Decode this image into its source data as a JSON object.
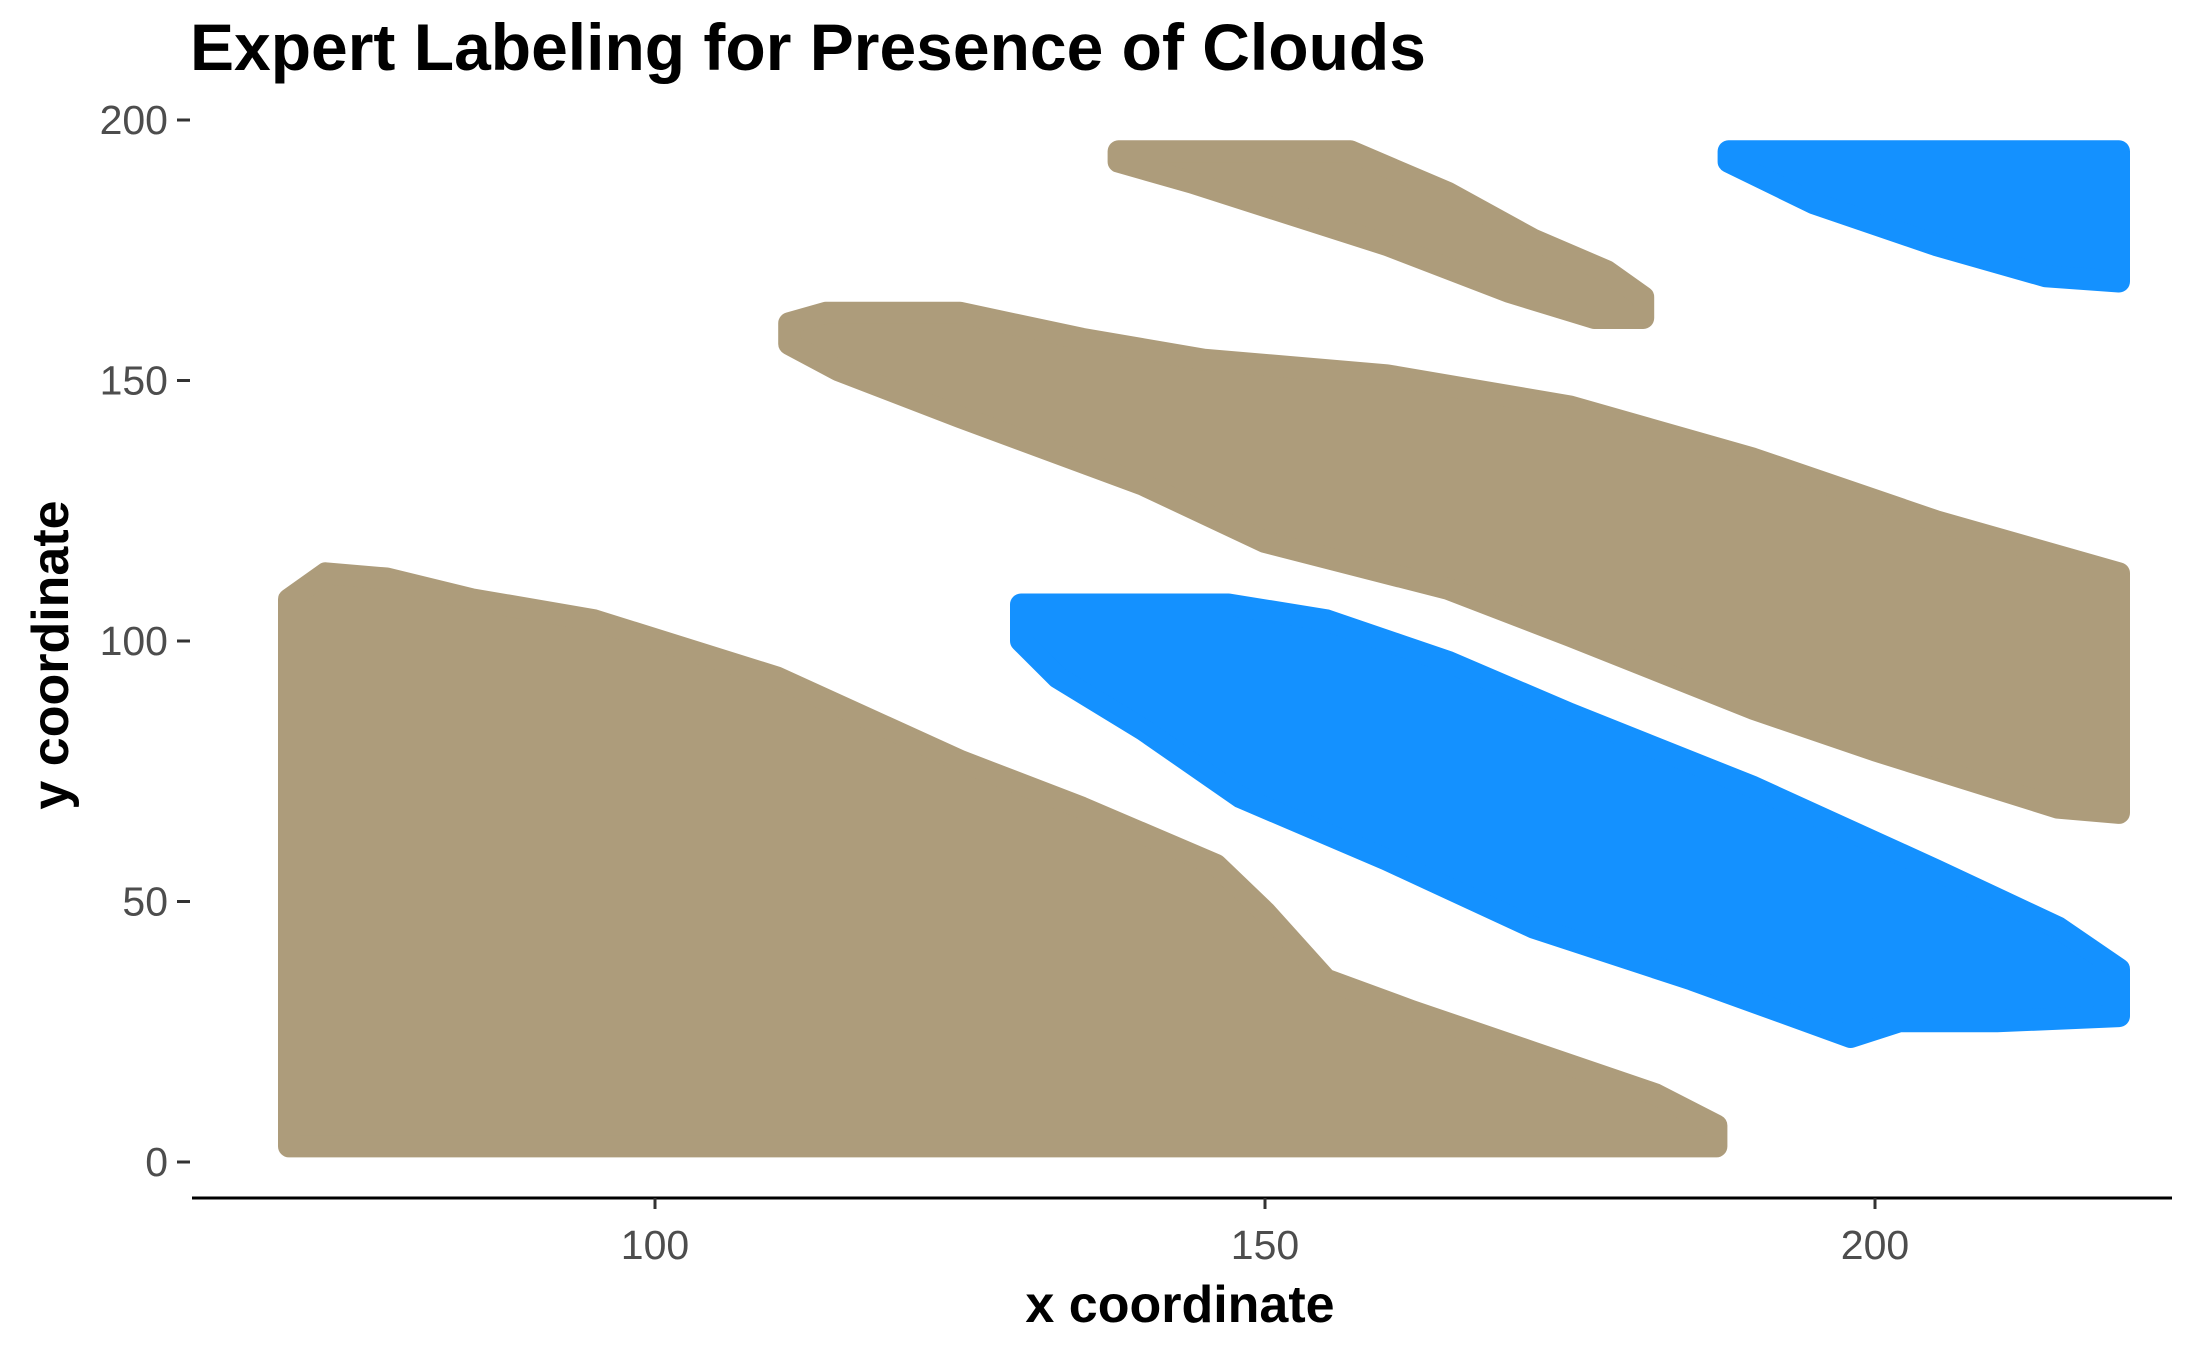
{
  "chart_data": {
    "type": "scatter",
    "title": "Expert Labeling for Presence of Clouds",
    "xlabel": "x coordinate",
    "ylabel": "y coordinate",
    "xlim": [
      62,
      226
    ],
    "ylim": [
      -7,
      208
    ],
    "x_ticks": [
      100,
      150,
      200
    ],
    "y_ticks": [
      0,
      50,
      100,
      150,
      200
    ],
    "grid": false,
    "legend": "none",
    "series": [
      {
        "color": "#ad9c7b",
        "regions": [
          {
            "polygon": [
              [
                70,
                108
              ],
              [
                73,
                113
              ],
              [
                78,
                112
              ],
              [
                85,
                108
              ],
              [
                95,
                104
              ],
              [
                110,
                93
              ],
              [
                125,
                77
              ],
              [
                135,
                68
              ],
              [
                146,
                57
              ],
              [
                150,
                48
              ],
              [
                155,
                35
              ],
              [
                162,
                29
              ],
              [
                172,
                21
              ],
              [
                182,
                13
              ],
              [
                187,
                7
              ],
              [
                187,
                3
              ],
              [
                70,
                3
              ],
              [
                70,
                57
              ]
            ]
          },
          {
            "polygon": [
              [
                138,
                194
              ],
              [
                157,
                194
              ],
              [
                165,
                186
              ],
              [
                172,
                177
              ],
              [
                178,
                171
              ],
              [
                181,
                166
              ],
              [
                181,
                162
              ],
              [
                177,
                162
              ],
              [
                170,
                167
              ],
              [
                160,
                176
              ],
              [
                152,
                182
              ],
              [
                144,
                188
              ],
              [
                138,
                192
              ]
            ]
          },
          {
            "polygon": [
              [
                111,
                161
              ],
              [
                114,
                163
              ],
              [
                125,
                163
              ],
              [
                135,
                158
              ],
              [
                145,
                154
              ],
              [
                160,
                151
              ],
              [
                175,
                145
              ],
              [
                190,
                135
              ],
              [
                205,
                123
              ],
              [
                220,
                113
              ],
              [
                220,
                67
              ],
              [
                215,
                68
              ],
              [
                200,
                79
              ],
              [
                190,
                87
              ],
              [
                175,
                101
              ],
              [
                165,
                110
              ],
              [
                150,
                119
              ],
              [
                140,
                130
              ],
              [
                125,
                143
              ],
              [
                115,
                152
              ],
              [
                111,
                157
              ]
            ]
          }
        ]
      },
      {
        "color": "#1491ff",
        "regions": [
          {
            "polygon": [
              [
                130,
                107
              ],
              [
                147,
                107
              ],
              [
                155,
                104
              ],
              [
                165,
                96
              ],
              [
                175,
                86
              ],
              [
                190,
                72
              ],
              [
                205,
                56
              ],
              [
                215,
                45
              ],
              [
                220,
                37
              ],
              [
                220,
                28
              ],
              [
                210,
                27
              ],
              [
                202,
                27
              ],
              [
                198,
                24
              ],
              [
                185,
                35
              ],
              [
                172,
                45
              ],
              [
                160,
                58
              ],
              [
                148,
                70
              ],
              [
                140,
                83
              ],
              [
                133,
                93
              ],
              [
                130,
                100
              ]
            ]
          },
          {
            "polygon": [
              [
                188,
                194
              ],
              [
                220,
                194
              ],
              [
                220,
                169
              ],
              [
                214,
                170
              ],
              [
                205,
                176
              ],
              [
                195,
                184
              ],
              [
                188,
                192
              ]
            ]
          }
        ]
      }
    ]
  }
}
